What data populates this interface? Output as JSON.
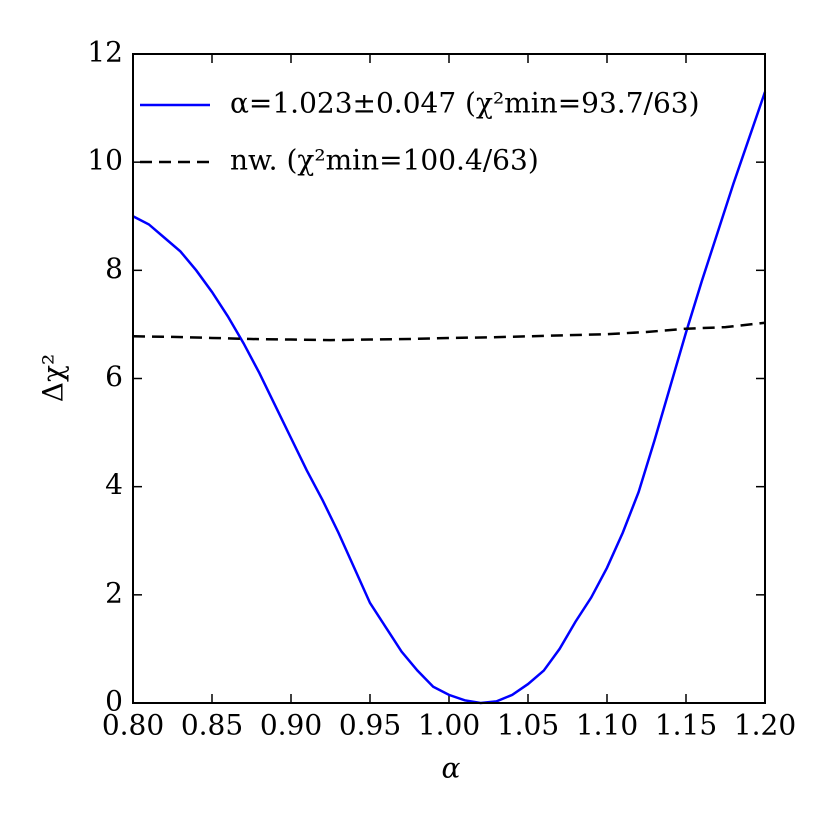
{
  "chart_data": {
    "type": "line",
    "x_label": "α",
    "y_label": "Δχ²",
    "xlim": [
      0.8,
      1.2
    ],
    "ylim": [
      0,
      12
    ],
    "xticks": [
      {
        "value": 0.8,
        "label": "0.80"
      },
      {
        "value": 0.85,
        "label": "0.85"
      },
      {
        "value": 0.9,
        "label": "0.90"
      },
      {
        "value": 0.95,
        "label": "0.95"
      },
      {
        "value": 1.0,
        "label": "1.00"
      },
      {
        "value": 1.05,
        "label": "1.05"
      },
      {
        "value": 1.1,
        "label": "1.10"
      },
      {
        "value": 1.15,
        "label": "1.15"
      },
      {
        "value": 1.2,
        "label": "1.20"
      }
    ],
    "yticks": [
      0,
      2,
      4,
      6,
      8,
      10,
      12
    ],
    "legend": "upper left",
    "series": [
      {
        "name": "α=1.023±0.047 (χ²min=93.7/63)",
        "color": "#0000ff",
        "dash": "solid",
        "x": [
          0.8,
          0.81,
          0.82,
          0.83,
          0.84,
          0.85,
          0.86,
          0.87,
          0.88,
          0.89,
          0.9,
          0.91,
          0.92,
          0.93,
          0.94,
          0.95,
          0.96,
          0.97,
          0.98,
          0.99,
          1.0,
          1.01,
          1.02,
          1.03,
          1.04,
          1.05,
          1.06,
          1.07,
          1.08,
          1.09,
          1.1,
          1.11,
          1.12,
          1.13,
          1.14,
          1.15,
          1.16,
          1.17,
          1.18,
          1.19,
          1.2
        ],
        "values": [
          9.0,
          8.85,
          8.6,
          8.35,
          8.0,
          7.6,
          7.15,
          6.65,
          6.1,
          5.5,
          4.9,
          4.3,
          3.75,
          3.15,
          2.5,
          1.85,
          1.4,
          0.95,
          0.6,
          0.3,
          0.15,
          0.05,
          0.0,
          0.03,
          0.15,
          0.35,
          0.6,
          1.0,
          1.5,
          1.95,
          2.5,
          3.15,
          3.9,
          4.85,
          5.85,
          6.85,
          7.8,
          8.7,
          9.6,
          10.45,
          11.3
        ]
      },
      {
        "name": "nw. (χ²min=100.4/63)",
        "color": "#000000",
        "dash": "dashed",
        "x": [
          0.8,
          0.825,
          0.85,
          0.875,
          0.9,
          0.925,
          0.95,
          0.975,
          1.0,
          1.025,
          1.05,
          1.075,
          1.1,
          1.125,
          1.15,
          1.175,
          1.2
        ],
        "values": [
          6.78,
          6.77,
          6.75,
          6.73,
          6.72,
          6.71,
          6.72,
          6.73,
          6.75,
          6.76,
          6.78,
          6.8,
          6.82,
          6.86,
          6.92,
          6.95,
          7.03
        ]
      }
    ]
  }
}
